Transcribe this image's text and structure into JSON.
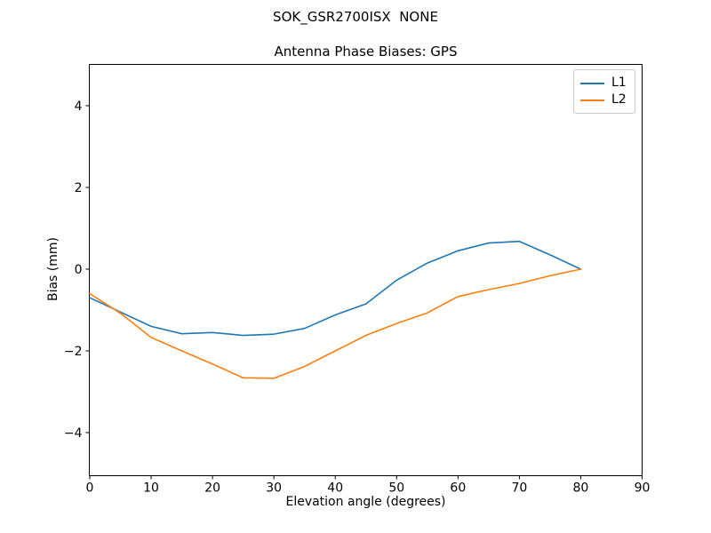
{
  "figure": {
    "suptitle": "SOK_GSR2700ISX  NONE"
  },
  "chart_data": {
    "type": "line",
    "title": "Antenna Phase Biases: GPS",
    "suptitle": "SOK_GSR2700ISX  NONE",
    "xlabel": "Elevation angle (degrees)",
    "ylabel": "Bias (mm)",
    "xlim": [
      0,
      90
    ],
    "ylim": [
      -5,
      5
    ],
    "x_ticks": [
      0,
      10,
      20,
      30,
      40,
      50,
      60,
      70,
      80,
      90
    ],
    "y_ticks": [
      -4,
      -2,
      0,
      2,
      4
    ],
    "grid": false,
    "legend_position": "upper right",
    "x": [
      0,
      5,
      10,
      15,
      20,
      25,
      30,
      35,
      40,
      45,
      50,
      55,
      60,
      65,
      70,
      75,
      80
    ],
    "series": [
      {
        "name": "L1",
        "color": "#1f77b4",
        "values": [
          -0.7,
          -1.05,
          -1.4,
          -1.58,
          -1.55,
          -1.62,
          -1.59,
          -1.45,
          -1.12,
          -0.85,
          -0.27,
          0.15,
          0.45,
          0.64,
          0.68,
          0.35,
          0.0
        ]
      },
      {
        "name": "L2",
        "color": "#ff7f0e",
        "values": [
          -0.6,
          -1.08,
          -1.67,
          -2.0,
          -2.32,
          -2.66,
          -2.67,
          -2.38,
          -2.0,
          -1.62,
          -1.33,
          -1.07,
          -0.67,
          -0.5,
          -0.35,
          -0.16,
          0.0
        ]
      }
    ]
  }
}
